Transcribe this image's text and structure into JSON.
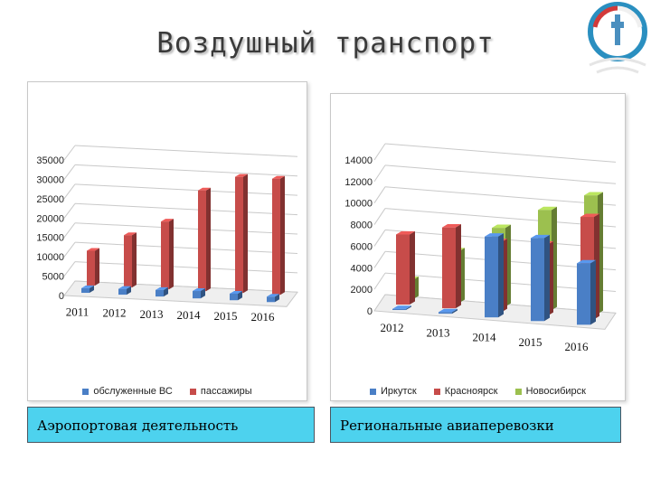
{
  "slide": {
    "title": "Воздушный транспорт",
    "captions": [
      "Аэропортовая деятельность",
      "Региональные авиаперевозки"
    ]
  },
  "colors": {
    "blue": "#4a7fc6",
    "red": "#c74c4a",
    "green": "#9cc04f",
    "caption_bg": "#4dd2ee"
  },
  "logo": {
    "icon": "tower-emblem-icon"
  },
  "chart_data": [
    {
      "type": "bar",
      "style": "3d",
      "title": "",
      "categories": [
        "2011",
        "2012",
        "2013",
        "2014",
        "2015",
        "2016"
      ],
      "series": [
        {
          "name": "обслуженные ВС",
          "values": [
            1200,
            1500,
            1700,
            1900,
            1700,
            1400
          ],
          "color": "#4a7fc6"
        },
        {
          "name": "пассажиры",
          "values": [
            9000,
            13500,
            17500,
            26000,
            30000,
            30000
          ],
          "color": "#c74c4a"
        }
      ],
      "yticks": [
        "0",
        "5000",
        "10000",
        "15000",
        "20000",
        "25000",
        "30000",
        "35000"
      ],
      "ylim": [
        0,
        35000
      ],
      "grid": true,
      "legend": "bottom"
    },
    {
      "type": "bar",
      "style": "3d",
      "title": "",
      "categories": [
        "2012",
        "2013",
        "2014",
        "2015",
        "2016"
      ],
      "series": [
        {
          "name": "Иркутск",
          "values": [
            100,
            150,
            7500,
            7700,
            5700
          ],
          "color": "#4a7fc6"
        },
        {
          "name": "Красноярск",
          "values": [
            6500,
            7500,
            6500,
            6600,
            9500
          ],
          "color": "#c74c4a"
        },
        {
          "name": "Новосибирск",
          "values": [
            1800,
            4800,
            7300,
            9300,
            11000
          ],
          "color": "#9cc04f"
        }
      ],
      "yticks": [
        "0",
        "2000",
        "4000",
        "6000",
        "8000",
        "10000",
        "12000",
        "14000"
      ],
      "ylim": [
        0,
        14000
      ],
      "grid": true,
      "legend": "bottom"
    }
  ]
}
